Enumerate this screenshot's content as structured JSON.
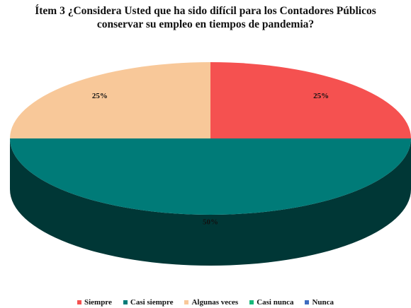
{
  "chart_data": {
    "type": "pie",
    "title": "Ítem 3 ¿Considera Usted que ha sido difícil para los Contadores Públicos conservar su empleo en tiempos de pandemia?",
    "categories": [
      "Siempre",
      "Casi siempre",
      "Algunas veces",
      "Casi nunca",
      "Nunca"
    ],
    "values": [
      25,
      50,
      25,
      0,
      0
    ],
    "value_labels": [
      "25%",
      "50%",
      "25%",
      null,
      null
    ],
    "colors": [
      "#f55150",
      "#007b78",
      "#f8c899",
      "#18b97a",
      "#3e6cc0"
    ],
    "legend": "bottom"
  }
}
